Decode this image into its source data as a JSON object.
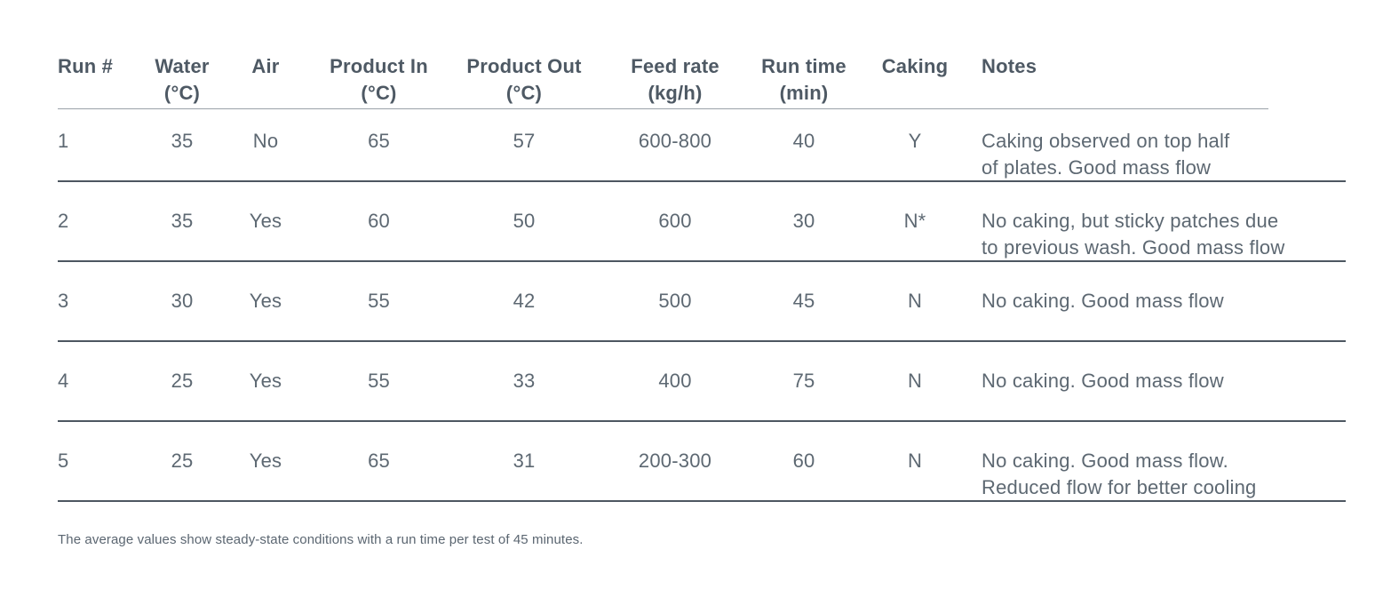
{
  "table": {
    "columns": [
      {
        "label": "Run #",
        "unit": ""
      },
      {
        "label": "Water",
        "unit": "(°C)"
      },
      {
        "label": "Air",
        "unit": ""
      },
      {
        "label": "Product In",
        "unit": "(°C)"
      },
      {
        "label": "Product Out",
        "unit": "(°C)"
      },
      {
        "label": "Feed rate",
        "unit": "(kg/h)"
      },
      {
        "label": "Run time",
        "unit": "(min)"
      },
      {
        "label": "Caking",
        "unit": ""
      },
      {
        "label": "Notes",
        "unit": ""
      }
    ],
    "rows": [
      {
        "run": "1",
        "water": "35",
        "air": "No",
        "product_in": "65",
        "product_out": "57",
        "feed_rate": "600-800",
        "run_time": "40",
        "caking": "Y",
        "notes": [
          "Caking observed on top half",
          "of plates. Good mass flow"
        ]
      },
      {
        "run": "2",
        "water": "35",
        "air": "Yes",
        "product_in": "60",
        "product_out": "50",
        "feed_rate": "600",
        "run_time": "30",
        "caking": "N*",
        "notes": [
          "No caking, but sticky patches due",
          "to previous wash. Good mass flow"
        ]
      },
      {
        "run": "3",
        "water": "30",
        "air": "Yes",
        "product_in": "55",
        "product_out": "42",
        "feed_rate": "500",
        "run_time": "45",
        "caking": "N",
        "notes": [
          "No caking. Good mass flow"
        ]
      },
      {
        "run": "4",
        "water": "25",
        "air": "Yes",
        "product_in": "55",
        "product_out": "33",
        "feed_rate": "400",
        "run_time": "75",
        "caking": "N",
        "notes": [
          "No caking. Good mass flow"
        ]
      },
      {
        "run": "5",
        "water": "25",
        "air": "Yes",
        "product_in": "65",
        "product_out": "31",
        "feed_rate": "200-300",
        "run_time": "60",
        "caking": "N",
        "notes": [
          "No caking. Good mass flow.",
          "Reduced flow for better cooling"
        ]
      }
    ]
  },
  "footer": {
    "note": "The average values show steady-state conditions with a run time per test of 45 minutes."
  },
  "colors": {
    "header_text": "#4e5964",
    "body_text": "#5d6872",
    "header_line": "#9aa2a9",
    "row_line": "#4d5761",
    "background": "#ffffff"
  }
}
